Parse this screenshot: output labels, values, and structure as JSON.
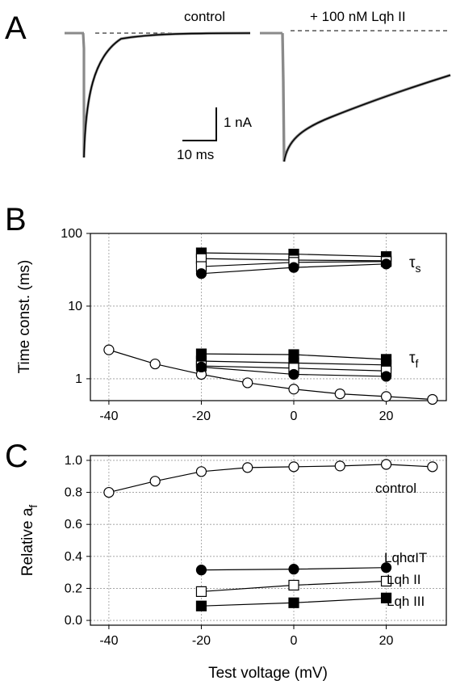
{
  "panels": {
    "A": {
      "letter": "A",
      "control_label": "control",
      "toxin_label": "+ 100 nM Lqh II",
      "scale_y": "1 nA",
      "scale_x": "10 ms"
    },
    "B": {
      "letter": "B",
      "tau_s": "τ",
      "tau_s_sub": "s",
      "tau_f": "τ",
      "tau_f_sub": "f"
    },
    "C": {
      "letter": "C",
      "labels": {
        "control": "control",
        "lqhat": "LqhαIT",
        "lqh2": "Lqh II",
        "lqh3": "Lqh III"
      }
    }
  },
  "chart_data": [
    {
      "type": "line",
      "panel": "A",
      "title": "",
      "note": "current traces; control and + 100 nM Lqh II"
    },
    {
      "type": "line",
      "panel": "B",
      "xlabel": "",
      "ylabel": "Time const. (ms)",
      "yscale": "log",
      "xlim": [
        -44,
        33
      ],
      "ylim": [
        0.5,
        100
      ],
      "x_ticks": [
        "-40",
        "-20",
        "0",
        "20"
      ],
      "y_ticks": [
        "1",
        "10",
        "100"
      ],
      "grid": true,
      "series": [
        {
          "group": "control_f",
          "marker": "open-circle",
          "x": [
            -40,
            -30,
            -20,
            -10,
            0,
            10,
            20,
            30
          ],
          "y": [
            2.5,
            1.6,
            1.15,
            0.88,
            0.72,
            0.62,
            0.57,
            0.52
          ]
        },
        {
          "group": "tau_s",
          "marker": "filled-square",
          "x": [
            -20,
            0,
            20
          ],
          "y": [
            54,
            52,
            48
          ]
        },
        {
          "group": "tau_s",
          "marker": "open-square",
          "x": [
            -20,
            0,
            20
          ],
          "y": [
            45,
            43,
            42
          ]
        },
        {
          "group": "tau_s",
          "marker": "open-square",
          "x": [
            -20,
            0,
            20
          ],
          "y": [
            35,
            40,
            41
          ]
        },
        {
          "group": "tau_s",
          "marker": "filled-circle",
          "x": [
            -20,
            0,
            20
          ],
          "y": [
            28,
            34,
            38
          ]
        },
        {
          "group": "tau_f",
          "marker": "filled-square",
          "x": [
            -20,
            0,
            20
          ],
          "y": [
            2.2,
            2.15,
            1.85
          ]
        },
        {
          "group": "tau_f",
          "marker": "filled-square",
          "x": [
            -20,
            0,
            20
          ],
          "y": [
            1.75,
            1.65,
            1.55
          ]
        },
        {
          "group": "tau_f",
          "marker": "open-square",
          "x": [
            -20,
            0,
            20
          ],
          "y": [
            1.5,
            1.4,
            1.28
          ]
        },
        {
          "group": "tau_f",
          "marker": "filled-circle",
          "x": [
            -20,
            0,
            20
          ],
          "y": [
            1.45,
            1.15,
            1.08
          ]
        }
      ]
    },
    {
      "type": "line",
      "panel": "C",
      "xlabel": "Test voltage (mV)",
      "ylabel": "Relative a",
      "ylabel_sub": "f",
      "xlim": [
        -44,
        33
      ],
      "ylim": [
        -0.03,
        1.03
      ],
      "x_ticks": [
        "-40",
        "-20",
        "0",
        "20"
      ],
      "y_ticks": [
        "0.0",
        "0.2",
        "0.4",
        "0.6",
        "0.8",
        "1.0"
      ],
      "grid": true,
      "series": [
        {
          "name": "control",
          "marker": "open-circle",
          "x": [
            -40,
            -30,
            -20,
            -10,
            0,
            10,
            20,
            30
          ],
          "y": [
            0.8,
            0.87,
            0.93,
            0.955,
            0.96,
            0.965,
            0.975,
            0.96
          ]
        },
        {
          "name": "LqhαIT",
          "marker": "filled-circle",
          "x": [
            -20,
            0,
            20
          ],
          "y": [
            0.315,
            0.32,
            0.33
          ]
        },
        {
          "name": "Lqh II",
          "marker": "open-square",
          "x": [
            -20,
            0,
            20
          ],
          "y": [
            0.18,
            0.22,
            0.245
          ]
        },
        {
          "name": "Lqh III",
          "marker": "filled-square",
          "x": [
            -20,
            0,
            20
          ],
          "y": [
            0.09,
            0.11,
            0.14
          ]
        }
      ]
    }
  ]
}
